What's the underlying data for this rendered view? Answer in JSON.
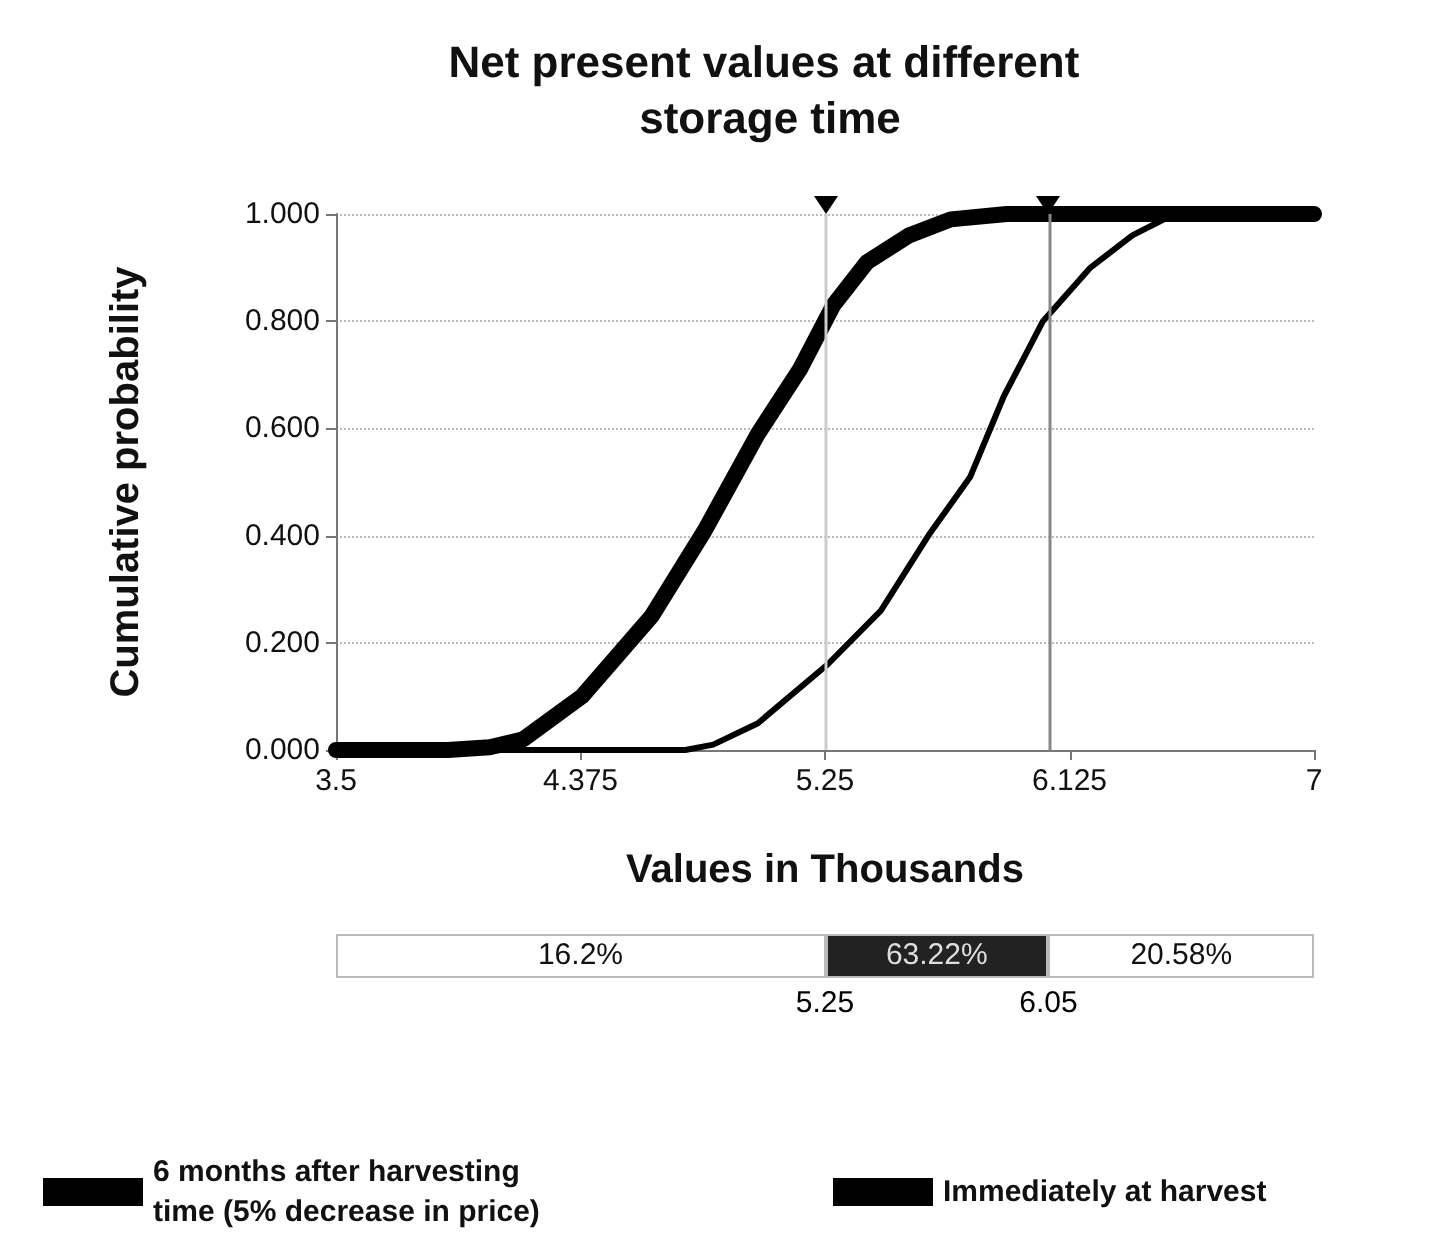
{
  "chart_data": {
    "type": "line",
    "title": "Net present values at different storage time",
    "xlabel": "Values in Thousands",
    "ylabel": "Cumulative probability",
    "xlim": [
      3.5,
      7
    ],
    "xticks": [
      3.5,
      4.375,
      5.25,
      6.125,
      7
    ],
    "ylim": [
      0,
      1
    ],
    "yticks": [
      {
        "value": 0,
        "label": "0.000"
      },
      {
        "value": 0.2,
        "label": "0.200"
      },
      {
        "value": 0.4,
        "label": "0.400"
      },
      {
        "value": 0.6,
        "label": "0.600"
      },
      {
        "value": 0.8,
        "label": "0.800"
      },
      {
        "value": 1,
        "label": "1.000"
      }
    ],
    "grid": "y",
    "legend": "bottom",
    "marker": "none",
    "line_style": "solid",
    "series": [
      {
        "name": "6 months after harvesting time (5% decrease in price)",
        "color": "#000000",
        "x": [
          3.5,
          3.9,
          4.05,
          4.17,
          4.38,
          4.63,
          4.82,
          5.01,
          5.16,
          5.28,
          5.4,
          5.55,
          5.7,
          5.9,
          7
        ],
        "values": [
          0,
          0,
          0.005,
          0.02,
          0.1,
          0.25,
          0.41,
          0.59,
          0.71,
          0.83,
          0.91,
          0.96,
          0.99,
          1,
          1
        ]
      },
      {
        "name": "Immediately at harvest",
        "color": "#000000",
        "x": [
          3.5,
          4.75,
          4.85,
          5.01,
          5.26,
          5.45,
          5.62,
          5.77,
          5.89,
          6.03,
          6.2,
          6.35,
          6.5,
          7
        ],
        "values": [
          0,
          0,
          0.01,
          0.05,
          0.16,
          0.26,
          0.4,
          0.51,
          0.66,
          0.8,
          0.9,
          0.96,
          1,
          1
        ]
      }
    ],
    "ref_lines": [
      {
        "axis": "x",
        "value": 5.25,
        "color": "#cccccc"
      },
      {
        "axis": "x",
        "value": 6.05,
        "color": "#888888"
      }
    ],
    "annotations": [
      "16.2%",
      "63.22%",
      "20.58%",
      "5.25",
      "6.05"
    ]
  }
}
